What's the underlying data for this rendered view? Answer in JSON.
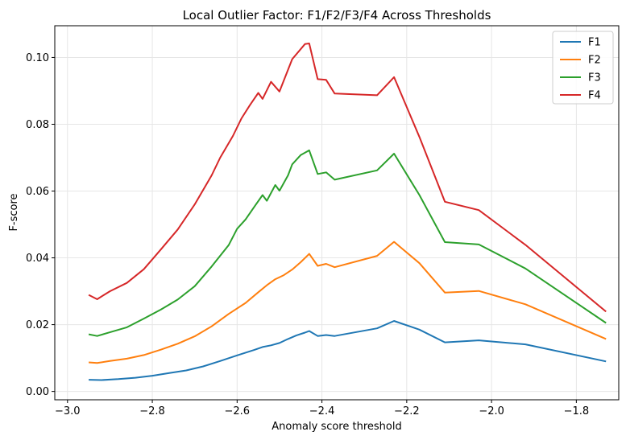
{
  "chart_data": {
    "type": "line",
    "title": "Local Outlier Factor: F1/F2/F3/F4 Across Thresholds",
    "xlabel": "Anomaly score threshold",
    "ylabel": "F-score",
    "xlim": [
      -3.0,
      -1.7
    ],
    "ylim": [
      0.0,
      0.11
    ],
    "xticks": [
      -3.0,
      -2.8,
      -2.6,
      -2.4,
      -2.2,
      -2.0,
      -1.8
    ],
    "xtick_labels": [
      "−3.0",
      "−2.8",
      "−2.6",
      "−2.4",
      "−2.2",
      "−2.0",
      "−1.8"
    ],
    "yticks": [
      0.0,
      0.02,
      0.04,
      0.06,
      0.08,
      0.1
    ],
    "ytick_labels": [
      "0.00",
      "0.02",
      "0.04",
      "0.06",
      "0.08",
      "0.10"
    ],
    "grid": true,
    "legend_position": "top-right",
    "series": [
      {
        "name": "F1",
        "color": "#1f77b4",
        "points": [
          [
            -2.95,
            0.0035
          ],
          [
            -2.92,
            0.0034
          ],
          [
            -2.88,
            0.0037
          ],
          [
            -2.84,
            0.0041
          ],
          [
            -2.8,
            0.0047
          ],
          [
            -2.76,
            0.0055
          ],
          [
            -2.72,
            0.0063
          ],
          [
            -2.68,
            0.0075
          ],
          [
            -2.64,
            0.0091
          ],
          [
            -2.6,
            0.0108
          ],
          [
            -2.56,
            0.0124
          ],
          [
            -2.54,
            0.0133
          ],
          [
            -2.52,
            0.0138
          ],
          [
            -2.5,
            0.0145
          ],
          [
            -2.48,
            0.0157
          ],
          [
            -2.46,
            0.0168
          ],
          [
            -2.44,
            0.0176
          ],
          [
            -2.43,
            0.0181
          ],
          [
            -2.41,
            0.0166
          ],
          [
            -2.39,
            0.0169
          ],
          [
            -2.37,
            0.0166
          ],
          [
            -2.27,
            0.0189
          ],
          [
            -2.23,
            0.0211
          ],
          [
            -2.17,
            0.0185
          ],
          [
            -2.11,
            0.0147
          ],
          [
            -2.03,
            0.0153
          ],
          [
            -1.92,
            0.0141
          ],
          [
            -1.73,
            0.009
          ]
        ]
      },
      {
        "name": "F2",
        "color": "#ff7f0e",
        "points": [
          [
            -2.95,
            0.0087
          ],
          [
            -2.93,
            0.0085
          ],
          [
            -2.9,
            0.0091
          ],
          [
            -2.86,
            0.0098
          ],
          [
            -2.82,
            0.0109
          ],
          [
            -2.78,
            0.0125
          ],
          [
            -2.74,
            0.0143
          ],
          [
            -2.7,
            0.0165
          ],
          [
            -2.66,
            0.0195
          ],
          [
            -2.62,
            0.0232
          ],
          [
            -2.58,
            0.0265
          ],
          [
            -2.55,
            0.0297
          ],
          [
            -2.53,
            0.0318
          ],
          [
            -2.51,
            0.0336
          ],
          [
            -2.49,
            0.0348
          ],
          [
            -2.47,
            0.0365
          ],
          [
            -2.45,
            0.0387
          ],
          [
            -2.43,
            0.0412
          ],
          [
            -2.41,
            0.0376
          ],
          [
            -2.39,
            0.0382
          ],
          [
            -2.37,
            0.0372
          ],
          [
            -2.27,
            0.0406
          ],
          [
            -2.23,
            0.0448
          ],
          [
            -2.17,
            0.0384
          ],
          [
            -2.11,
            0.0296
          ],
          [
            -2.03,
            0.0301
          ],
          [
            -1.92,
            0.0261
          ],
          [
            -1.73,
            0.0157
          ]
        ]
      },
      {
        "name": "F3",
        "color": "#2ca02c",
        "points": [
          [
            -2.95,
            0.0171
          ],
          [
            -2.93,
            0.0166
          ],
          [
            -2.9,
            0.0177
          ],
          [
            -2.86,
            0.0192
          ],
          [
            -2.82,
            0.0218
          ],
          [
            -2.78,
            0.0245
          ],
          [
            -2.74,
            0.0275
          ],
          [
            -2.7,
            0.0315
          ],
          [
            -2.66,
            0.0374
          ],
          [
            -2.62,
            0.0438
          ],
          [
            -2.6,
            0.0487
          ],
          [
            -2.58,
            0.0515
          ],
          [
            -2.56,
            0.0552
          ],
          [
            -2.54,
            0.0588
          ],
          [
            -2.53,
            0.0571
          ],
          [
            -2.51,
            0.0618
          ],
          [
            -2.5,
            0.0601
          ],
          [
            -2.48,
            0.0647
          ],
          [
            -2.47,
            0.068
          ],
          [
            -2.45,
            0.0708
          ],
          [
            -2.43,
            0.0722
          ],
          [
            -2.41,
            0.0651
          ],
          [
            -2.39,
            0.0656
          ],
          [
            -2.37,
            0.0634
          ],
          [
            -2.27,
            0.0662
          ],
          [
            -2.23,
            0.0712
          ],
          [
            -2.17,
            0.0588
          ],
          [
            -2.11,
            0.0447
          ],
          [
            -2.03,
            0.044
          ],
          [
            -1.92,
            0.0368
          ],
          [
            -1.73,
            0.0205
          ]
        ]
      },
      {
        "name": "F4",
        "color": "#d62728",
        "points": [
          [
            -2.95,
            0.0289
          ],
          [
            -2.93,
            0.0276
          ],
          [
            -2.9,
            0.03
          ],
          [
            -2.86,
            0.0325
          ],
          [
            -2.82,
            0.0366
          ],
          [
            -2.78,
            0.0425
          ],
          [
            -2.74,
            0.0485
          ],
          [
            -2.7,
            0.056
          ],
          [
            -2.66,
            0.0647
          ],
          [
            -2.64,
            0.07
          ],
          [
            -2.61,
            0.0765
          ],
          [
            -2.59,
            0.0817
          ],
          [
            -2.57,
            0.0857
          ],
          [
            -2.55,
            0.0894
          ],
          [
            -2.54,
            0.0876
          ],
          [
            -2.52,
            0.0927
          ],
          [
            -2.5,
            0.0898
          ],
          [
            -2.47,
            0.0995
          ],
          [
            -2.44,
            0.104
          ],
          [
            -2.43,
            0.1042
          ],
          [
            -2.41,
            0.0935
          ],
          [
            -2.39,
            0.0933
          ],
          [
            -2.37,
            0.0892
          ],
          [
            -2.27,
            0.0887
          ],
          [
            -2.23,
            0.0941
          ],
          [
            -2.17,
            0.0762
          ],
          [
            -2.11,
            0.0568
          ],
          [
            -2.03,
            0.0543
          ],
          [
            -1.92,
            0.0439
          ],
          [
            -1.73,
            0.0239
          ]
        ]
      }
    ]
  }
}
